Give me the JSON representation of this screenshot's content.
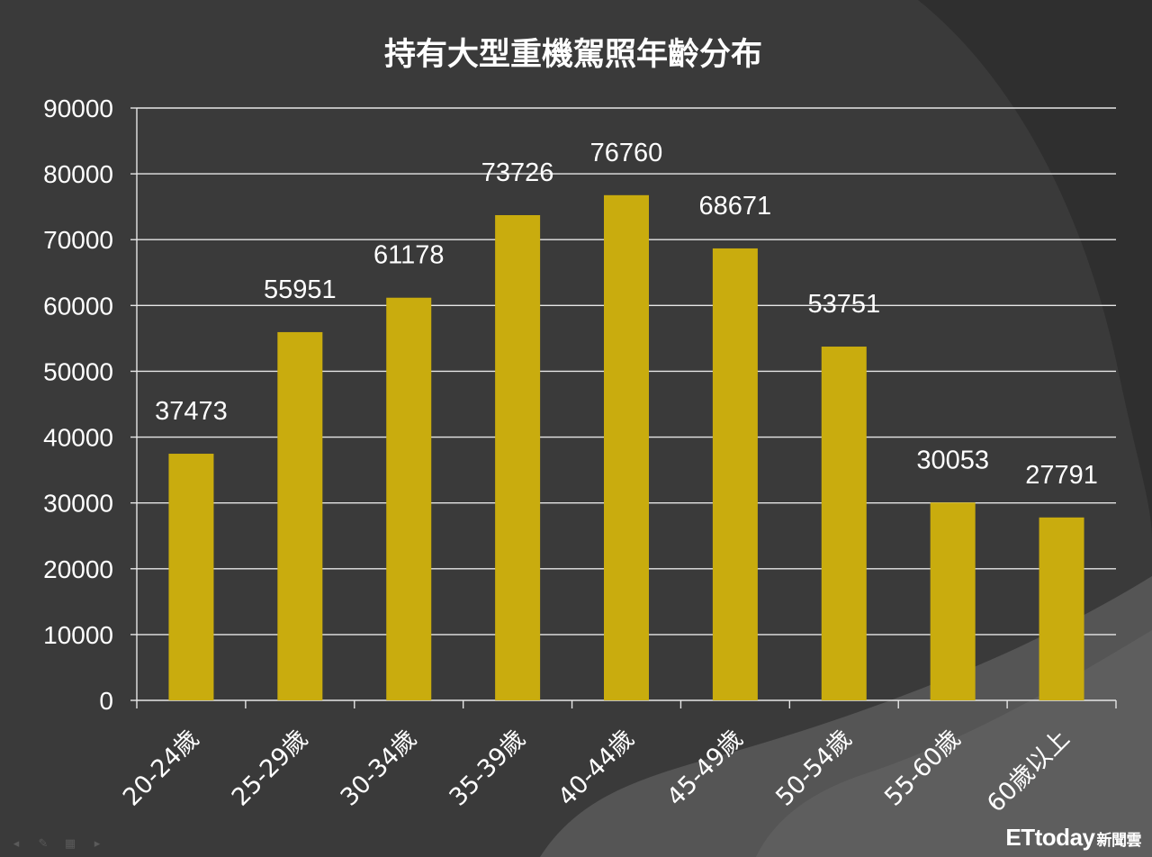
{
  "chart_data": {
    "type": "bar",
    "title": "持有大型重機駕照年齡分布",
    "categories": [
      "20-24歲",
      "25-29歲",
      "30-34歲",
      "35-39歲",
      "40-44歲",
      "45-49歲",
      "50-54歲",
      "55-60歲",
      "60歲以上"
    ],
    "values": [
      37473,
      55951,
      61178,
      73726,
      76760,
      68671,
      53751,
      30053,
      27791
    ],
    "value_labels": [
      "37473",
      "55951",
      "61178",
      "73726",
      "76760",
      "68671",
      "53751",
      "30053",
      "27791"
    ],
    "yticks": [
      "0",
      "10000",
      "20000",
      "30000",
      "40000",
      "50000",
      "60000",
      "70000",
      "80000",
      "90000"
    ],
    "ylim": [
      0,
      90000
    ],
    "grid": true,
    "legend": "none",
    "colors": {
      "bar": "#c9ac0e",
      "background": "#3a3a3a",
      "swoosh_dark": "#2f2f2f",
      "swoosh_light": "#555555",
      "grid": "#e6e6e6",
      "text": "#ffffff"
    }
  },
  "watermark": {
    "brand": "ETtoday",
    "sub": "新聞雲"
  },
  "slide_controls": [
    "prev-icon",
    "pen-icon",
    "menu-icon",
    "next-icon"
  ]
}
